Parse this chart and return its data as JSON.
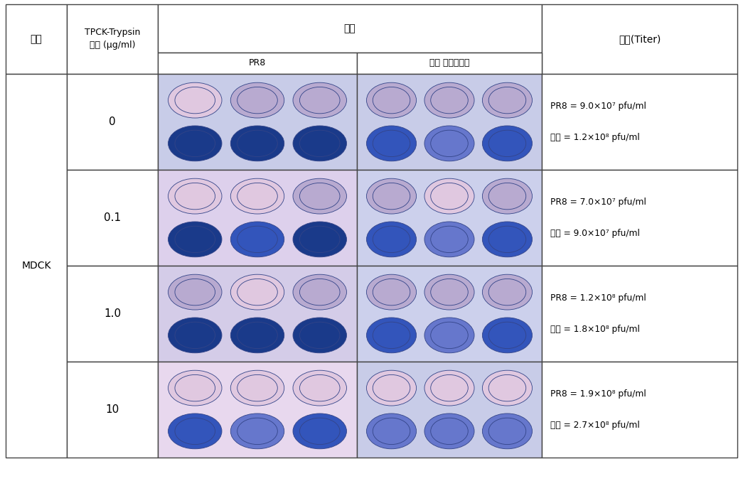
{
  "bg_color": "#ffffff",
  "line_color": "#444444",
  "col_header_1": "세포",
  "col_header_2": "TPCK-Trypsin\n농도 (μg/ml)",
  "col_header_3": "결과",
  "col_header_3a": "PR8",
  "col_header_3b": "신종 인플루엔자",
  "col_header_4": "역가(Titer)",
  "cell_label": "MDCK",
  "concentrations": [
    "0",
    "0.1",
    "1.0",
    "10"
  ],
  "titer_lines": [
    [
      "PR8 = 9.0×10⁷ pfu/ml",
      "신종 = 1.2×10⁸ pfu/ml"
    ],
    [
      "PR8 = 7.0×10⁷ pfu/ml",
      "신종 = 9.0×10⁷ pfu/ml"
    ],
    [
      "PR8 = 1.2×10⁸ pfu/ml",
      "신종 = 1.8×10⁸ pfu/ml"
    ],
    [
      "PR8 = 1.9×10⁸ pfu/ml",
      "신종 = 2.7×10⁸ pfu/ml"
    ]
  ],
  "pr8_bg_colors": [
    "#c8cce8",
    "#ddd0ec",
    "#d4cce8",
    "#e8d8ee"
  ],
  "sin_bg_colors": [
    "#c8cce8",
    "#ccd0ec",
    "#ccd0ec",
    "#c8cce8"
  ],
  "well_blue_dark": "#1a3a8a",
  "well_blue_mid": "#3355bb",
  "well_blue_light": "#6677cc",
  "well_pink_light": "#e0c8e0",
  "well_lavender": "#b8aad0",
  "well_edge": "#334488"
}
